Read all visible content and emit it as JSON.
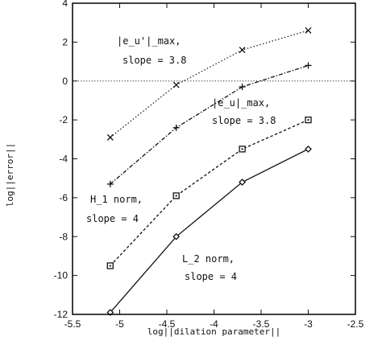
{
  "chart_data": {
    "type": "line",
    "xlabel": "log||dilation parameter||",
    "ylabel": "log||error||",
    "xlim": [
      -5.5,
      -2.5
    ],
    "ylim": [
      -12,
      4
    ],
    "xticks": [
      -5.5,
      -5,
      -4.5,
      -4,
      -3.5,
      -3,
      -2.5
    ],
    "xtick_labels": [
      "-5.5",
      "-5",
      "-4.5",
      "-4",
      "-3.5",
      "-3",
      "-2.5"
    ],
    "yticks": [
      -12,
      -10,
      -8,
      -6,
      -4,
      -2,
      0,
      2,
      4
    ],
    "ytick_labels": [
      "-12",
      "-10",
      "-8",
      "-6",
      "-4",
      "-2",
      "0",
      "2",
      "4"
    ],
    "grid": false,
    "legend": "none",
    "reference_line": {
      "y": 0,
      "style": "dotted"
    },
    "series": [
      {
        "name": "|e_u'|_max",
        "marker": "x",
        "line": "dotted",
        "color": "#111111",
        "x": [
          -5.1,
          -4.4,
          -3.7,
          -3.0
        ],
        "y": [
          -2.9,
          -0.2,
          1.6,
          2.6
        ]
      },
      {
        "name": "|e_u|_max",
        "marker": "+",
        "line": "dashdot",
        "color": "#111111",
        "x": [
          -5.1,
          -4.4,
          -3.7,
          -3.0
        ],
        "y": [
          -5.3,
          -2.4,
          -0.3,
          0.8
        ]
      },
      {
        "name": "H_1 norm",
        "marker": "square",
        "line": "dashed",
        "color": "#111111",
        "x": [
          -5.1,
          -4.4,
          -3.7,
          -3.0
        ],
        "y": [
          -9.5,
          -5.9,
          -3.5,
          -2.0
        ]
      },
      {
        "name": "L_2 norm",
        "marker": "diamond",
        "line": "solid",
        "color": "#111111",
        "x": [
          -5.1,
          -4.4,
          -3.7,
          -3.0
        ],
        "y": [
          -11.9,
          -8.0,
          -5.2,
          -3.5
        ]
      }
    ],
    "annotations": [
      {
        "line1": "|e_u'|_max,",
        "line2": "slope = 3.8"
      },
      {
        "line1": "|e_u|_max,",
        "line2": "slope = 3.8"
      },
      {
        "line1": "H_1 norm,",
        "line2": "slope = 4"
      },
      {
        "line1": "L_2 norm,",
        "line2": "slope = 4"
      }
    ]
  }
}
